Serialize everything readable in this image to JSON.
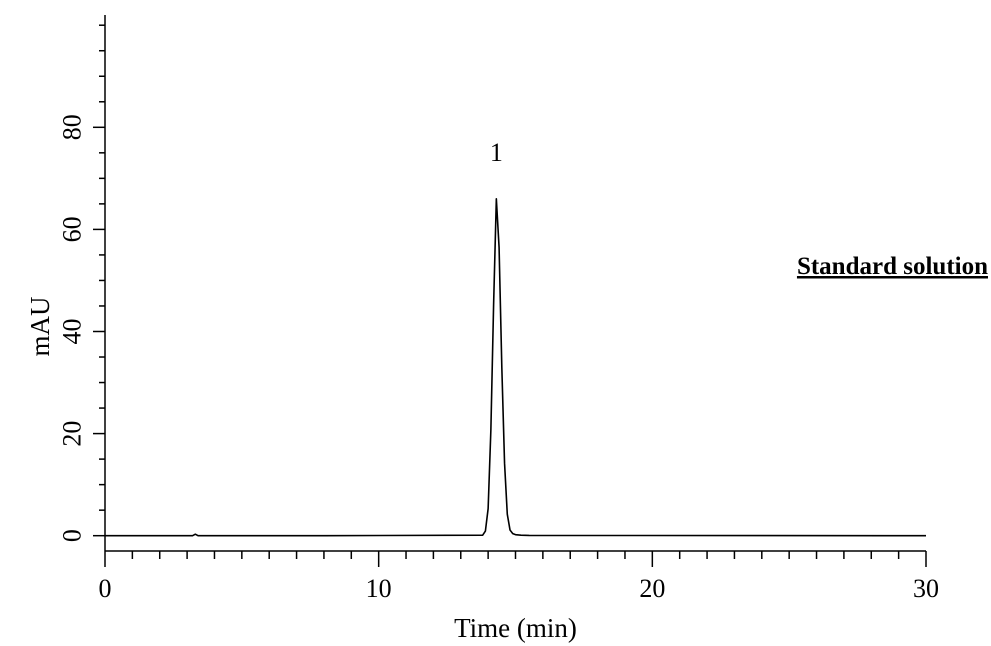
{
  "chart_data": {
    "type": "line",
    "xlabel": "Time (min)",
    "ylabel": "mAU",
    "xlim": [
      0,
      30
    ],
    "ylim": [
      -3,
      102
    ],
    "x_ticks": [
      0,
      10,
      20,
      30
    ],
    "y_ticks": [
      0,
      20,
      40,
      60,
      80
    ],
    "x_minor_step": 1,
    "y_minor_step": 5,
    "grid": false,
    "legend": "none",
    "annotation": "Standard solution",
    "series": [
      {
        "x": [
          0,
          3.2,
          3.3,
          3.4,
          8.0,
          13.8,
          13.9,
          14.0,
          14.1,
          14.2,
          14.3,
          14.4,
          14.5,
          14.6,
          14.7,
          14.8,
          14.9,
          15.0,
          15.2,
          15.5,
          30
        ],
        "y": [
          0,
          0,
          0.3,
          0,
          0,
          0.1,
          0.9,
          5.3,
          20.7,
          45.3,
          66.0,
          56.5,
          33.0,
          14.2,
          4.2,
          1.1,
          0.4,
          0.2,
          0.1,
          0.05,
          0
        ]
      }
    ],
    "peaks": [
      {
        "label": "1",
        "x": 14.3,
        "y": 66.0
      }
    ]
  }
}
